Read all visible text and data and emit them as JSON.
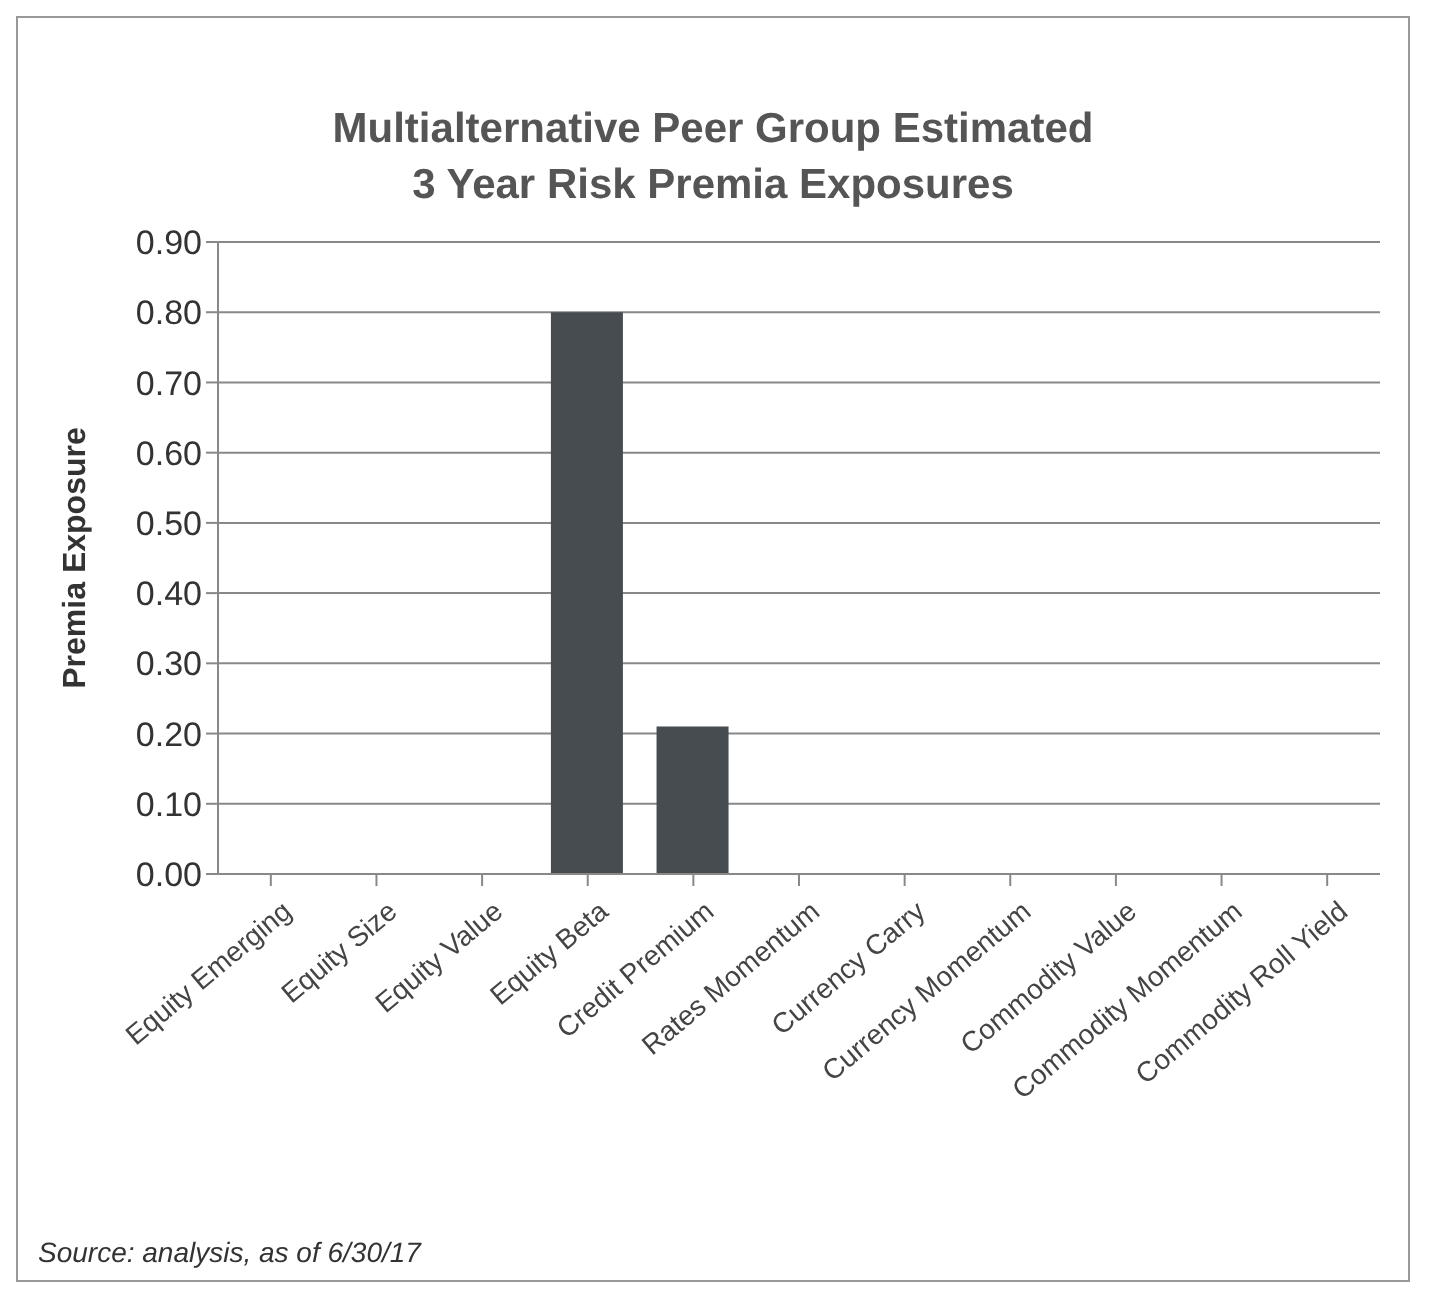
{
  "chart_data": {
    "type": "bar",
    "title": "Multialternative Peer Group Estimated\n3 Year Risk Premia Exposures",
    "ylabel": "Premia Exposure",
    "categories": [
      "Equity Emerging",
      "Equity Size",
      "Equity Value",
      "Equity Beta",
      "Credit Premium",
      "Rates Momentum",
      "Currency Carry",
      "Currency Momentum",
      "Commodity Value",
      "Commodity Momentum",
      "Commodity Roll Yield"
    ],
    "values": [
      0,
      0,
      0,
      0.8,
      0.21,
      0,
      0,
      0,
      0,
      0,
      0
    ],
    "color": "#474c51",
    "ylim": [
      0,
      0.9
    ],
    "yticks": [
      {
        "value": 0,
        "label": "0.00"
      },
      {
        "value": 0.1,
        "label": "0.10"
      },
      {
        "value": 0.2,
        "label": "0.20"
      },
      {
        "value": 0.3,
        "label": "0.30"
      },
      {
        "value": 0.4,
        "label": "0.40"
      },
      {
        "value": 0.5,
        "label": "0.50"
      },
      {
        "value": 0.6,
        "label": "0.60"
      },
      {
        "value": 0.7,
        "label": "0.70"
      },
      {
        "value": 0.8,
        "label": "0.80"
      },
      {
        "value": 0.9,
        "label": "0.90"
      }
    ],
    "grid": "y",
    "annotations": [
      "Source: analysis, as of 6/30/17"
    ]
  }
}
